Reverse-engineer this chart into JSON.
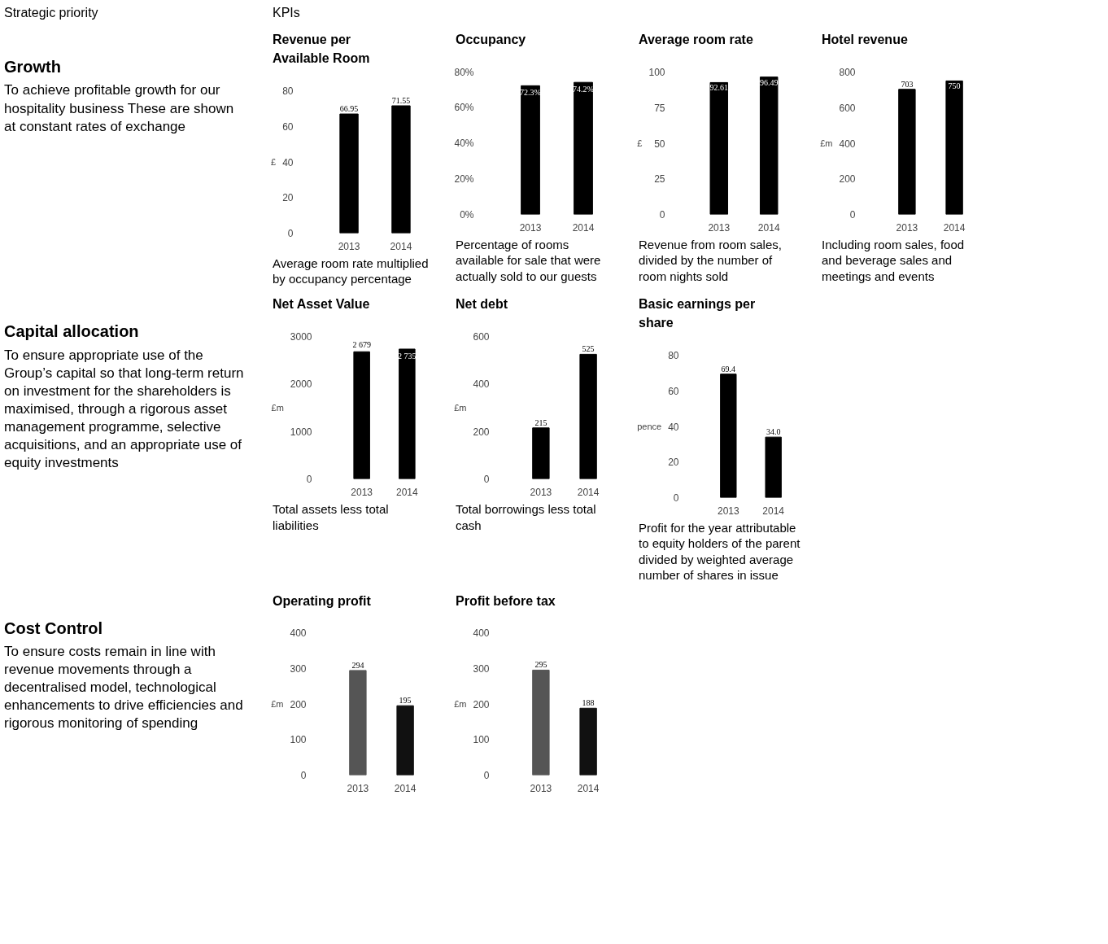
{
  "chart_data": [
    {
      "type": "other",
      "annotations": [
        "Strategic priority",
        "KPIs"
      ]
    },
    {
      "type": "other",
      "title": "Growth",
      "subtitle": "To achieve profitable growth for our hospitality business These are shown at constant rates of exchange"
    },
    {
      "type": "bar",
      "title": "Revenue per Available Room",
      "ylabel": "£",
      "categories": [
        "2013",
        "2014"
      ],
      "values": [
        66.95,
        71.55
      ],
      "value_labels": [
        "66.95",
        "71.55"
      ],
      "color": "#000000",
      "ylim": [
        0,
        80
      ],
      "yticks": [
        0,
        20,
        40,
        60,
        80
      ],
      "grid": false,
      "annotations": [
        "Average room rate multiplied by occupancy percentage"
      ]
    },
    {
      "type": "bar",
      "title": "Occupancy",
      "categories": [
        "2013",
        "2014"
      ],
      "values": [
        72.3,
        74.2
      ],
      "value_labels": [
        "72.3%",
        "74.2%"
      ],
      "color": "#000000",
      "ylim": [
        0,
        80
      ],
      "yticks": [
        {
          "value": 0,
          "label": "0%"
        },
        {
          "value": 20,
          "label": "20%"
        },
        {
          "value": 40,
          "label": "40%"
        },
        {
          "value": 60,
          "label": "60%"
        },
        {
          "value": 80,
          "label": "80%"
        }
      ],
      "grid": false,
      "annotations": [
        "Percentage of rooms available for sale that were actually sold to our guests"
      ]
    },
    {
      "type": "bar",
      "title": "Average room rate",
      "ylabel": "£",
      "categories": [
        "2013",
        "2014"
      ],
      "values": [
        92.61,
        96.49
      ],
      "value_labels": [
        "92.61",
        "96.49"
      ],
      "color": "#000000",
      "ylim": [
        0,
        100
      ],
      "yticks": [
        0,
        25,
        50,
        75,
        100
      ],
      "grid": false,
      "annotations": [
        "Revenue from room sales, divided by the number of room nights sold"
      ]
    },
    {
      "type": "bar",
      "title": "Hotel revenue",
      "ylabel": "£m",
      "categories": [
        "2013",
        "2014"
      ],
      "values": [
        703,
        750
      ],
      "value_labels": [
        "703",
        "750"
      ],
      "color": "#000000",
      "ylim": [
        0,
        800
      ],
      "yticks": [
        0,
        200,
        400,
        600,
        800
      ],
      "grid": false,
      "annotations": [
        "Including room sales, food and beverage sales and meetings and events"
      ]
    },
    {
      "type": "other",
      "title": "Capital allocation",
      "subtitle": "To ensure appropriate use of the Group’s capital so that long-term return on investment for the shareholders is maximised, through a rigorous asset management programme, selective acquisitions, and an appropriate use of equity investments"
    },
    {
      "type": "bar",
      "title": "Net Asset Value",
      "ylabel": "£m",
      "categories": [
        "2013",
        "2014"
      ],
      "values": [
        2679,
        2735
      ],
      "value_labels": [
        "2 679",
        "2 735"
      ],
      "color": "#000000",
      "ylim": [
        0,
        3000
      ],
      "yticks": [
        0,
        1000,
        2000,
        3000
      ],
      "grid": false,
      "annotations": [
        "Total assets less total liabilities"
      ]
    },
    {
      "type": "bar",
      "title": "Net debt",
      "ylabel": "£m",
      "categories": [
        "2013",
        "2014"
      ],
      "values": [
        215,
        525
      ],
      "value_labels": [
        "215",
        "525"
      ],
      "color": "#000000",
      "ylim": [
        0,
        600
      ],
      "yticks": [
        0,
        200,
        400,
        600
      ],
      "grid": false,
      "annotations": [
        "Total borrowings less total cash"
      ]
    },
    {
      "type": "bar",
      "title": "Basic earnings per share",
      "ylabel": "pence",
      "categories": [
        "2013",
        "2014"
      ],
      "values": [
        69.4,
        34.0
      ],
      "value_labels": [
        "69.4",
        "34.0"
      ],
      "color": "#000000",
      "ylim": [
        0,
        80
      ],
      "yticks": [
        0,
        20,
        40,
        60,
        80
      ],
      "grid": false,
      "annotations": [
        "Profit for the year attributable to equity holders of the parent divided by weighted average number of shares in issue"
      ]
    },
    {
      "type": "other",
      "title": "Cost Control",
      "subtitle": "To ensure costs remain in line with revenue movements through a decentralised model, technological enhancements to drive efficiencies and rigorous monitoring of spending"
    },
    {
      "type": "bar",
      "title": "Operating profit",
      "ylabel": "£m",
      "categories": [
        "2013",
        "2014"
      ],
      "values": [
        294,
        195
      ],
      "value_labels": [
        "294",
        "195"
      ],
      "colors": [
        "#555555",
        "#111111"
      ],
      "ylim": [
        0,
        400
      ],
      "yticks": [
        0,
        100,
        200,
        300,
        400
      ],
      "grid": false
    },
    {
      "type": "bar",
      "title": "Profit before tax",
      "ylabel": "£m",
      "categories": [
        "2013",
        "2014"
      ],
      "values": [
        295,
        188
      ],
      "value_labels": [
        "295",
        "188"
      ],
      "colors": [
        "#555555",
        "#111111"
      ],
      "ylim": [
        0,
        400
      ],
      "yticks": [
        0,
        100,
        200,
        300,
        400
      ],
      "grid": false
    }
  ]
}
